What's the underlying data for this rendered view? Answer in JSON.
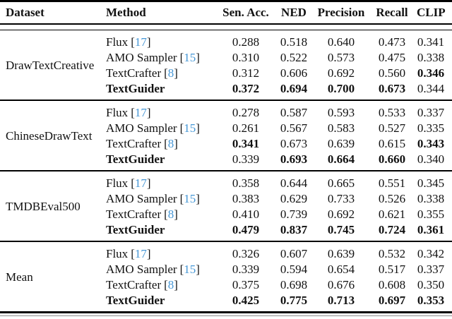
{
  "meta": {
    "bracket_open": "[",
    "bracket_close": "]",
    "colors": {
      "citation": "#4697d6",
      "text": "#111111",
      "rule": "#000000"
    }
  },
  "header": {
    "columns": [
      "Dataset",
      "Method",
      "Sen. Acc.",
      "NED",
      "Precision",
      "Recall",
      "CLIP"
    ]
  },
  "table": {
    "groups": [
      {
        "dataset": "DrawTextCreative",
        "rows": [
          {
            "method": "Flux",
            "cite": "17",
            "values": [
              "0.288",
              "0.518",
              "0.640",
              "0.473",
              "0.341"
            ]
          },
          {
            "method": "AMO Sampler",
            "cite": "15",
            "values": [
              "0.310",
              "0.522",
              "0.573",
              "0.475",
              "0.338"
            ]
          },
          {
            "method": "TextCrafter",
            "cite": "8",
            "values": [
              "0.312",
              "0.606",
              "0.692",
              "0.560",
              "0.346"
            ]
          },
          {
            "method": "TextGuider",
            "values": [
              "0.372",
              "0.694",
              "0.700",
              "0.673",
              "0.344"
            ]
          }
        ]
      },
      {
        "dataset": "ChineseDrawText",
        "rows": [
          {
            "method": "Flux",
            "cite": "17",
            "values": [
              "0.278",
              "0.587",
              "0.593",
              "0.533",
              "0.337"
            ]
          },
          {
            "method": "AMO Sampler",
            "cite": "15",
            "values": [
              "0.261",
              "0.567",
              "0.583",
              "0.527",
              "0.335"
            ]
          },
          {
            "method": "TextCrafter",
            "cite": "8",
            "values": [
              "0.341",
              "0.673",
              "0.639",
              "0.615",
              "0.343"
            ]
          },
          {
            "method": "TextGuider",
            "values": [
              "0.339",
              "0.693",
              "0.664",
              "0.660",
              "0.340"
            ]
          }
        ]
      },
      {
        "dataset": "TMDBEval500",
        "rows": [
          {
            "method": "Flux",
            "cite": "17",
            "values": [
              "0.358",
              "0.644",
              "0.665",
              "0.551",
              "0.345"
            ]
          },
          {
            "method": "AMO Sampler",
            "cite": "15",
            "values": [
              "0.383",
              "0.629",
              "0.733",
              "0.526",
              "0.338"
            ]
          },
          {
            "method": "TextCrafter",
            "cite": "8",
            "values": [
              "0.410",
              "0.739",
              "0.692",
              "0.621",
              "0.355"
            ]
          },
          {
            "method": "TextGuider",
            "values": [
              "0.479",
              "0.837",
              "0.745",
              "0.724",
              "0.361"
            ]
          }
        ]
      },
      {
        "dataset": "Mean",
        "rows": [
          {
            "method": "Flux",
            "cite": "17",
            "values": [
              "0.326",
              "0.607",
              "0.639",
              "0.532",
              "0.342"
            ]
          },
          {
            "method": "AMO Sampler",
            "cite": "15",
            "values": [
              "0.339",
              "0.594",
              "0.654",
              "0.517",
              "0.337"
            ]
          },
          {
            "method": "TextCrafter",
            "cite": "8",
            "values": [
              "0.375",
              "0.698",
              "0.676",
              "0.608",
              "0.350"
            ]
          },
          {
            "method": "TextGuider",
            "values": [
              "0.425",
              "0.775",
              "0.713",
              "0.697",
              "0.353"
            ]
          }
        ]
      }
    ]
  }
}
